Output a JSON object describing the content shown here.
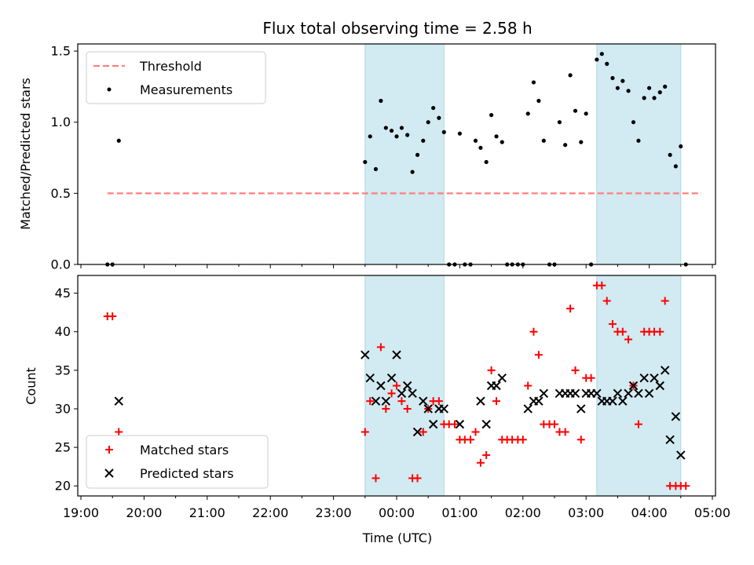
{
  "chart_data": {
    "title": "Flux total observing time = 2.58 h",
    "xlabel": "Time (UTC)",
    "x_tick_labels": [
      "19:00",
      "20:00",
      "21:00",
      "22:00",
      "23:00",
      "00:00",
      "01:00",
      "02:00",
      "03:00",
      "04:00",
      "05:00"
    ],
    "x_range_hours": [
      18.95,
      29.05
    ],
    "highlight_spans_hours": [
      [
        23.5,
        24.75
      ],
      [
        27.17,
        28.5
      ]
    ],
    "highlight_color": "#add8e6",
    "panels": [
      {
        "type": "scatter",
        "ylabel": "Matched/Predicted stars",
        "ylim": [
          0,
          1.55
        ],
        "y_ticks": [
          0.0,
          0.5,
          1.0,
          1.5
        ],
        "legend_position": "upper-left",
        "threshold": {
          "name": "Threshold",
          "value": 0.5,
          "x_range": [
            19.42,
            28.83
          ],
          "color": "#ff7f7f",
          "style": "dashed"
        },
        "series": [
          {
            "name": "Measurements",
            "marker": "dot",
            "color": "#000000",
            "x": [
              19.42,
              19.5,
              19.6,
              23.5,
              23.58,
              23.67,
              23.75,
              23.83,
              23.92,
              24.0,
              24.08,
              24.17,
              24.25,
              24.33,
              24.42,
              24.5,
              24.58,
              24.67,
              24.75,
              24.83,
              24.92,
              25.0,
              25.08,
              25.17,
              25.25,
              25.33,
              25.42,
              25.5,
              25.58,
              25.67,
              25.75,
              25.83,
              25.92,
              26.0,
              26.08,
              26.17,
              26.25,
              26.33,
              26.42,
              26.5,
              26.58,
              26.67,
              26.75,
              26.83,
              26.92,
              27.0,
              27.08,
              27.17,
              27.25,
              27.33,
              27.42,
              27.5,
              27.58,
              27.67,
              27.75,
              27.83,
              27.92,
              28.0,
              28.08,
              28.17,
              28.25,
              28.33,
              28.42,
              28.5,
              28.58
            ],
            "y": [
              0,
              0,
              0.87,
              0.72,
              0.9,
              0.67,
              1.15,
              0.96,
              0.94,
              0.9,
              0.96,
              0.91,
              0.65,
              0.77,
              0.87,
              1.0,
              1.1,
              1.03,
              0.93,
              0,
              0,
              0.92,
              0,
              0,
              0.87,
              0.82,
              0.72,
              1.05,
              0.9,
              0.86,
              0,
              0,
              0,
              0,
              1.06,
              1.28,
              1.15,
              0.87,
              0,
              0,
              1.0,
              0.84,
              1.33,
              1.08,
              0.86,
              1.06,
              0,
              1.44,
              1.48,
              1.41,
              1.31,
              1.24,
              1.29,
              1.22,
              1.0,
              0.87,
              1.17,
              1.24,
              1.17,
              1.21,
              1.25,
              0.77,
              0.69,
              0.83,
              0
            ]
          }
        ]
      },
      {
        "type": "scatter",
        "ylabel": "Count",
        "ylim": [
          18.7,
          47.3
        ],
        "y_ticks": [
          20,
          25,
          30,
          35,
          40,
          45
        ],
        "legend_position": "lower-left",
        "series": [
          {
            "name": "Matched stars",
            "marker": "plus",
            "color": "#ff0000",
            "x": [
              19.42,
              19.5,
              19.6,
              23.5,
              23.58,
              23.67,
              23.75,
              23.83,
              23.92,
              24.0,
              24.08,
              24.17,
              24.25,
              24.33,
              24.42,
              24.5,
              24.58,
              24.67,
              24.75,
              24.83,
              24.92,
              25.0,
              25.08,
              25.17,
              25.25,
              25.33,
              25.42,
              25.5,
              25.58,
              25.67,
              25.75,
              25.83,
              25.92,
              26.0,
              26.08,
              26.17,
              26.25,
              26.33,
              26.42,
              26.5,
              26.58,
              26.67,
              26.75,
              26.83,
              26.92,
              27.0,
              27.08,
              27.17,
              27.25,
              27.33,
              27.42,
              27.5,
              27.58,
              27.67,
              27.75,
              27.83,
              27.92,
              28.0,
              28.08,
              28.17,
              28.25,
              28.33,
              28.42,
              28.5,
              28.58
            ],
            "y": [
              42,
              42,
              27,
              27,
              31,
              21,
              38,
              30,
              32,
              33,
              31,
              30,
              21,
              21,
              27,
              30,
              31,
              31,
              28,
              28,
              28,
              26,
              26,
              26,
              27,
              23,
              24,
              35,
              31,
              26,
              26,
              26,
              26,
              26,
              33,
              40,
              37,
              28,
              28,
              28,
              27,
              27,
              43,
              35,
              26,
              34,
              34,
              46,
              46,
              44,
              41,
              40,
              40,
              39,
              33,
              28,
              40,
              40,
              40,
              40,
              44,
              20,
              20,
              20,
              20
            ],
            "note": "values read from plot"
          },
          {
            "name": "Predicted stars",
            "marker": "x",
            "color": "#000000",
            "x": [
              19.6,
              23.5,
              23.58,
              23.67,
              23.75,
              23.83,
              23.92,
              24.0,
              24.08,
              24.17,
              24.25,
              24.33,
              24.42,
              24.5,
              24.58,
              24.67,
              24.75,
              25.0,
              25.33,
              25.42,
              25.5,
              25.58,
              25.67,
              26.08,
              26.17,
              26.25,
              26.33,
              26.58,
              26.67,
              26.75,
              26.83,
              26.92,
              27.0,
              27.08,
              27.17,
              27.25,
              27.33,
              27.42,
              27.5,
              27.58,
              27.67,
              27.75,
              27.83,
              27.92,
              28.0,
              28.08,
              28.17,
              28.25,
              28.33,
              28.42,
              28.5
            ],
            "y": [
              31,
              37,
              34,
              31,
              33,
              31,
              34,
              37,
              32,
              33,
              32,
              27,
              31,
              30,
              28,
              30,
              30,
              28,
              31,
              28,
              33,
              33,
              34,
              30,
              31,
              31,
              32,
              32,
              32,
              32,
              32,
              30,
              32,
              32,
              32,
              31,
              31,
              31,
              32,
              31,
              32,
              33,
              32,
              34,
              32,
              34,
              33,
              35,
              26,
              29,
              24
            ]
          }
        ]
      }
    ]
  }
}
